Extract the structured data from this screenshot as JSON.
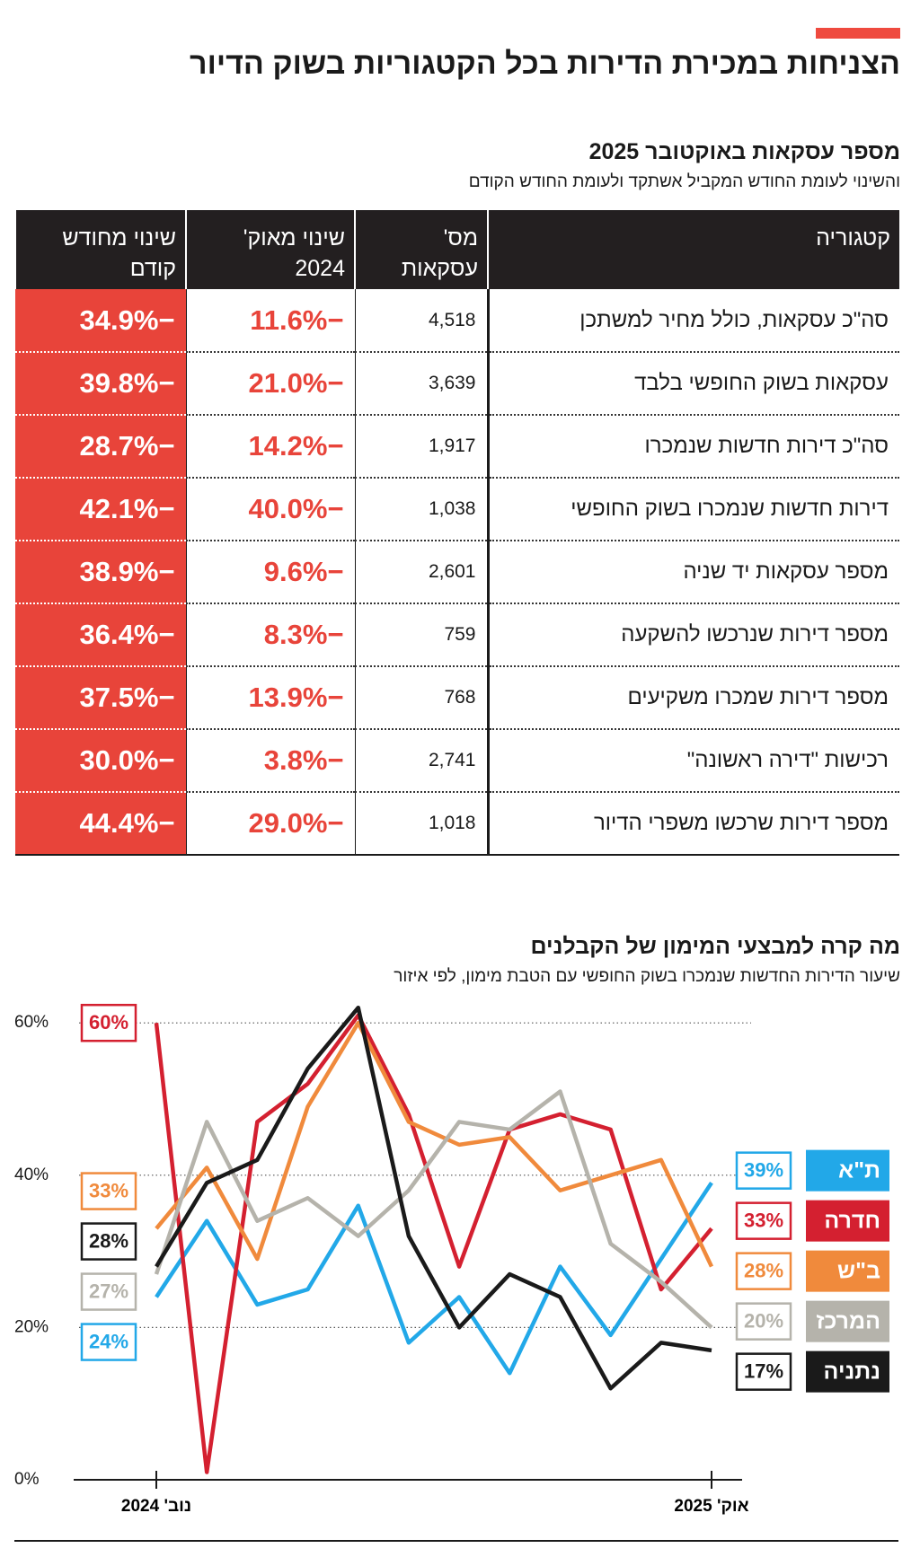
{
  "title": "הצניחות במכירת הדירות בכל הקטגוריות בשוק הדיור",
  "table": {
    "title": "מספר עסקאות באוקטובר 2025",
    "subtitle": "והשינוי לעומת החודש המקביל אשתקד ולעומת החודש הקודם",
    "columns": [
      "קטגוריה",
      "מס' עסקאות",
      "שינוי מאוק' 2024",
      "שינוי מחודש קודם"
    ],
    "rows": [
      [
        "סה\"כ עסקאות, כולל מחיר למשתכן",
        "4,518",
        "−11.6%",
        "−34.9%"
      ],
      [
        "עסקאות בשוק החופשי בלבד",
        "3,639",
        "−21.0%",
        "−39.8%"
      ],
      [
        "סה\"כ דירות חדשות שנמכרו",
        "1,917",
        "−14.2%",
        "−28.7%"
      ],
      [
        "דירות חדשות שנמכרו בשוק החופשי",
        "1,038",
        "−40.0%",
        "−42.1%"
      ],
      [
        "מספר עסקאות יד שניה",
        "2,601",
        "−9.6%",
        "−38.9%"
      ],
      [
        "מספר דירות שנרכשו להשקעה",
        "759",
        "−8.3%",
        "−36.4%"
      ],
      [
        "מספר דירות שמכרו משקיעים",
        "768",
        "−13.9%",
        "−37.5%"
      ],
      [
        "רכישות \"דירה ראשונה\"",
        "2,741",
        "−3.8%",
        "−30.0%"
      ],
      [
        "מספר דירות שרכשו משפרי הדיור",
        "1,018",
        "−29.0%",
        "−44.4%"
      ]
    ]
  },
  "chart_data": {
    "type": "line",
    "title": "מה קרה למבצעי המימון של הקבלנים",
    "subtitle": "שיעור הדירות החדשות שנמכרו בשוק החופשי עם הטבת מימון, לפי איזור",
    "categories": [
      "נוב' 2024",
      null,
      null,
      null,
      null,
      null,
      null,
      null,
      null,
      null,
      null,
      "אוק' 2025"
    ],
    "ylim": [
      0,
      63
    ],
    "yticks": [
      {
        "value": 0,
        "label": "0%"
      },
      {
        "value": 20,
        "label": "20%"
      },
      {
        "value": 40,
        "label": "40%"
      },
      {
        "value": 60,
        "label": "60%"
      }
    ],
    "grid": true,
    "series": [
      {
        "name": "ת\"א",
        "color": "#22a8e8",
        "values": [
          24,
          34,
          23,
          25,
          36,
          18,
          24,
          14,
          28,
          19,
          29,
          39
        ],
        "value_labels": [
          "24%",
          null,
          null,
          null,
          null,
          null,
          null,
          null,
          null,
          null,
          null,
          "39%"
        ]
      },
      {
        "name": "חדרה",
        "color": "#d42030",
        "values": [
          60,
          1,
          47,
          52,
          61,
          48,
          28,
          46,
          48,
          46,
          25,
          33
        ],
        "value_labels": [
          "60%",
          null,
          null,
          null,
          null,
          null,
          null,
          null,
          null,
          null,
          null,
          "33%"
        ]
      },
      {
        "name": "ב\"ש",
        "color": "#f08a3c",
        "values": [
          33,
          41,
          29,
          49,
          60,
          47,
          44,
          45,
          38,
          40,
          42,
          28
        ],
        "value_labels": [
          "33%",
          null,
          null,
          null,
          null,
          null,
          null,
          null,
          null,
          null,
          null,
          "28%"
        ]
      },
      {
        "name": "המרכז",
        "color": "#b5b3ab",
        "values": [
          27,
          47,
          34,
          37,
          32,
          38,
          47,
          46,
          51,
          31,
          26,
          20
        ],
        "value_labels": [
          "27%",
          null,
          null,
          null,
          null,
          null,
          null,
          null,
          null,
          null,
          null,
          "20%"
        ]
      },
      {
        "name": "נתניה",
        "color": "#1a1a1a",
        "values": [
          28,
          39,
          42,
          54,
          62,
          32,
          20,
          27,
          24,
          12,
          18,
          17
        ],
        "value_labels": [
          "28%",
          null,
          null,
          null,
          null,
          null,
          null,
          null,
          null,
          null,
          null,
          "17%"
        ]
      }
    ]
  }
}
